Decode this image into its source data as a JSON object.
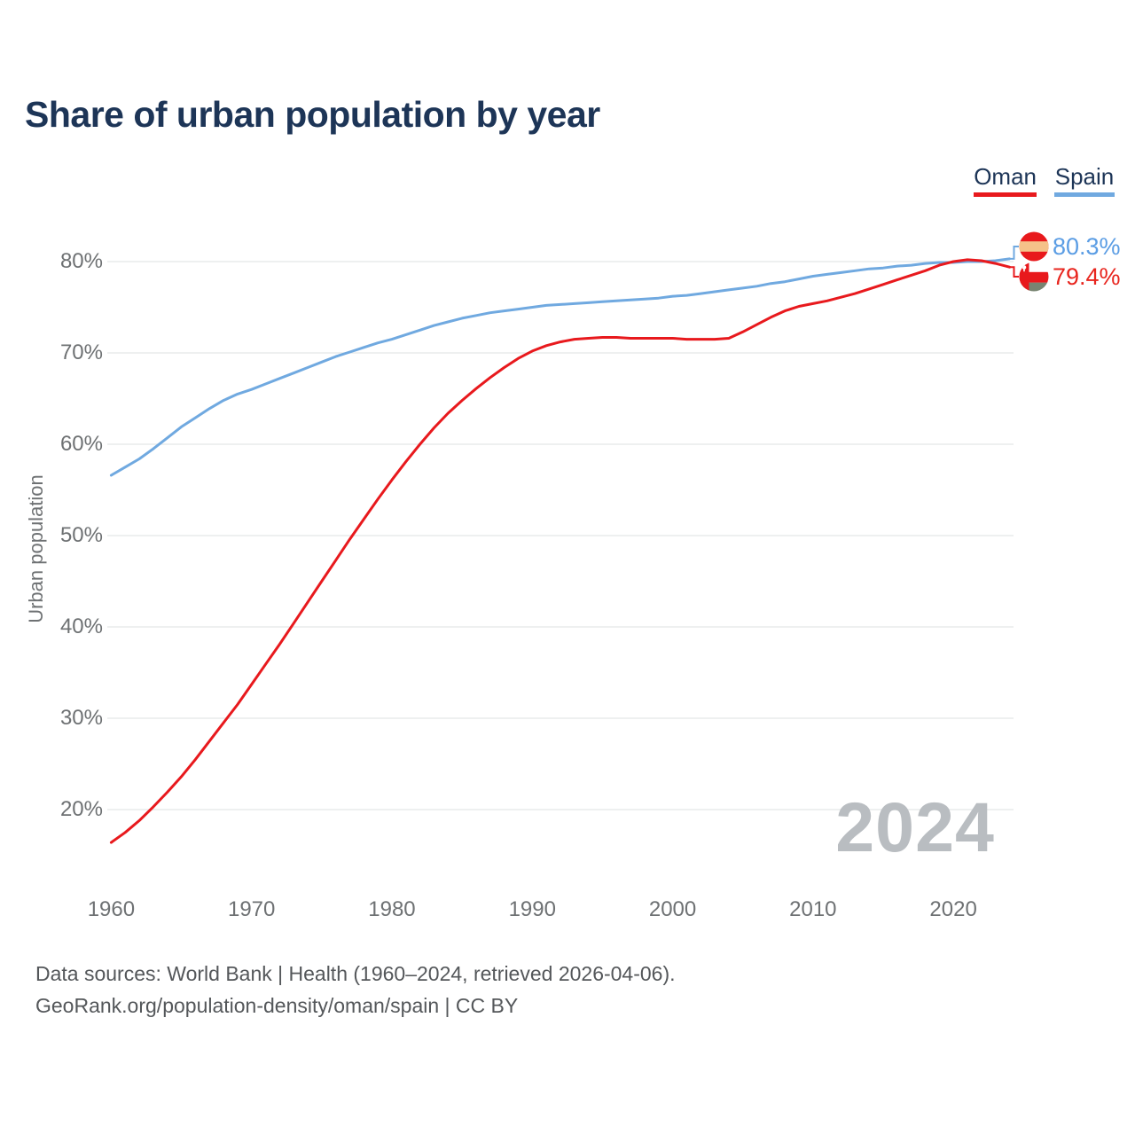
{
  "title": "Share of urban population by year",
  "legend": [
    {
      "label": "Oman",
      "color": "#e8191d"
    },
    {
      "label": "Spain",
      "color": "#70a9e0"
    }
  ],
  "y_axis": {
    "title": "Urban population",
    "ticks": [
      "80%",
      "70%",
      "60%",
      "50%",
      "40%",
      "30%",
      "20%"
    ]
  },
  "x_axis": {
    "ticks": [
      "1960",
      "1970",
      "1980",
      "1990",
      "2000",
      "2010",
      "2020"
    ]
  },
  "end_labels": [
    {
      "series": "Spain",
      "value": "80.3%",
      "color": "#5b9de4",
      "flag": "spain-flag"
    },
    {
      "series": "Oman",
      "value": "79.4%",
      "color": "#e8251e",
      "flag": "oman-flag"
    }
  ],
  "watermark": "2024",
  "footer": {
    "line1": "Data sources: World Bank | Health (1960–2024, retrieved 2026-04-06).",
    "line2": "GeoRank.org/population-density/oman/spain | CC BY"
  },
  "colors": {
    "navy": "#1d3557",
    "axis_gray": "#6e7173",
    "footer_gray": "#54575a",
    "watermark": "#b9bdc1",
    "grid": "#e9ebec"
  },
  "flags": {
    "spain": {
      "red": "#e8191c",
      "yellow": "#f5c189"
    },
    "oman": {
      "red": "#e8191c",
      "white": "#ffffff",
      "green": "#788471"
    }
  },
  "chart_data": {
    "type": "line",
    "title": "Share of urban population by year",
    "xlabel": "",
    "ylabel": "Urban population",
    "xlim": [
      1960,
      2024
    ],
    "ylim": [
      10,
      85
    ],
    "grid": "horizontal",
    "legend_position": "top-right",
    "x": [
      1960,
      1961,
      1962,
      1963,
      1964,
      1965,
      1966,
      1967,
      1968,
      1969,
      1970,
      1971,
      1972,
      1973,
      1974,
      1975,
      1976,
      1977,
      1978,
      1979,
      1980,
      1981,
      1982,
      1983,
      1984,
      1985,
      1986,
      1987,
      1988,
      1989,
      1990,
      1991,
      1992,
      1993,
      1994,
      1995,
      1996,
      1997,
      1998,
      1999,
      2000,
      2001,
      2002,
      2003,
      2004,
      2005,
      2006,
      2007,
      2008,
      2009,
      2010,
      2011,
      2012,
      2013,
      2014,
      2015,
      2016,
      2017,
      2018,
      2019,
      2020,
      2021,
      2022,
      2023,
      2024
    ],
    "series": [
      {
        "name": "Oman",
        "color": "#e8191d",
        "end_value": 79.4,
        "values": [
          16.4,
          17.5,
          18.8,
          20.3,
          21.9,
          23.6,
          25.5,
          27.5,
          29.5,
          31.5,
          33.7,
          35.9,
          38.1,
          40.4,
          42.7,
          45.0,
          47.3,
          49.6,
          51.8,
          54.0,
          56.1,
          58.1,
          60.0,
          61.8,
          63.4,
          64.8,
          66.1,
          67.3,
          68.4,
          69.4,
          70.2,
          70.8,
          71.2,
          71.5,
          71.6,
          71.7,
          71.7,
          71.6,
          71.6,
          71.6,
          71.6,
          71.5,
          71.5,
          71.5,
          71.6,
          72.3,
          73.1,
          73.9,
          74.6,
          75.1,
          75.4,
          75.7,
          76.1,
          76.5,
          77.0,
          77.5,
          78.0,
          78.5,
          79.0,
          79.6,
          80.0,
          80.2,
          80.1,
          79.8,
          79.4
        ]
      },
      {
        "name": "Spain",
        "color": "#70a9e0",
        "end_value": 80.3,
        "values": [
          56.6,
          57.5,
          58.4,
          59.5,
          60.7,
          61.9,
          62.9,
          63.9,
          64.8,
          65.5,
          66.0,
          66.6,
          67.2,
          67.8,
          68.4,
          69.0,
          69.6,
          70.1,
          70.6,
          71.1,
          71.5,
          72.0,
          72.5,
          73.0,
          73.4,
          73.8,
          74.1,
          74.4,
          74.6,
          74.8,
          75.0,
          75.2,
          75.3,
          75.4,
          75.5,
          75.6,
          75.7,
          75.8,
          75.9,
          76.0,
          76.2,
          76.3,
          76.5,
          76.7,
          76.9,
          77.1,
          77.3,
          77.6,
          77.8,
          78.1,
          78.4,
          78.6,
          78.8,
          79.0,
          79.2,
          79.3,
          79.5,
          79.6,
          79.8,
          79.9,
          79.9,
          80.0,
          80.0,
          80.1,
          80.3
        ]
      }
    ]
  }
}
